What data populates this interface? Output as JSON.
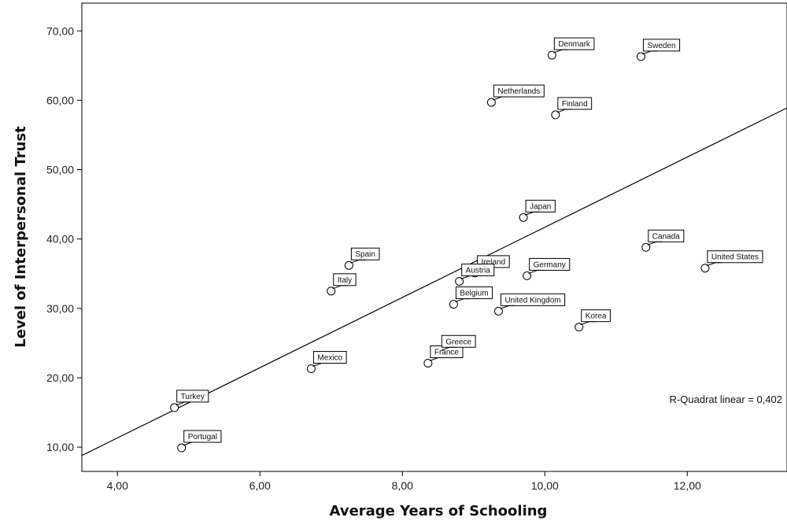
{
  "chart_data": {
    "type": "scatter",
    "title": "",
    "xlabel": "Average Years of Schooling",
    "ylabel": "Level of Interpersonal Trust",
    "xlim": [
      3.5,
      13.4
    ],
    "ylim": [
      6.5,
      74.0
    ],
    "xticks": [
      4,
      6,
      8,
      10,
      12
    ],
    "xtick_labels": [
      "4,00",
      "6,00",
      "8,00",
      "10,00",
      "12,00"
    ],
    "yticks": [
      10,
      20,
      30,
      40,
      50,
      60,
      70
    ],
    "ytick_labels": [
      "10,00",
      "20,00",
      "30,00",
      "40,00",
      "50,00",
      "60,00",
      "70,00"
    ],
    "grid": false,
    "points": [
      {
        "label": "Denmark",
        "x": 10.1,
        "y": 66.5
      },
      {
        "label": "Sweden",
        "x": 11.35,
        "y": 66.3
      },
      {
        "label": "Netherlands",
        "x": 9.25,
        "y": 59.7
      },
      {
        "label": "Finland",
        "x": 10.15,
        "y": 57.9
      },
      {
        "label": "Japan",
        "x": 9.7,
        "y": 43.1
      },
      {
        "label": "Canada",
        "x": 11.42,
        "y": 38.8
      },
      {
        "label": "United States",
        "x": 12.25,
        "y": 35.8
      },
      {
        "label": "Spain",
        "x": 7.25,
        "y": 36.2
      },
      {
        "label": "Ireland",
        "x": 9.02,
        "y": 35.1
      },
      {
        "label": "Germany",
        "x": 9.75,
        "y": 34.7
      },
      {
        "label": "Austria",
        "x": 8.8,
        "y": 33.9
      },
      {
        "label": "Italy",
        "x": 7.0,
        "y": 32.5
      },
      {
        "label": "Belgium",
        "x": 8.72,
        "y": 30.6
      },
      {
        "label": "United Kingdom",
        "x": 9.35,
        "y": 29.6
      },
      {
        "label": "Korea",
        "x": 10.48,
        "y": 27.3
      },
      {
        "label": "France",
        "x": 8.36,
        "y": 22.1
      },
      {
        "label": "Greece",
        "x": 8.52,
        "y": 23.6
      },
      {
        "label": "Mexico",
        "x": 6.72,
        "y": 21.3
      },
      {
        "label": "Turkey",
        "x": 4.8,
        "y": 15.7
      },
      {
        "label": "Portugal",
        "x": 4.9,
        "y": 9.9
      }
    ],
    "fit_line": {
      "type": "linear",
      "start": {
        "x": 3.5,
        "y": 8.8
      },
      "end": {
        "x": 13.4,
        "y": 58.9
      }
    },
    "annotation": "R-Quadrat linear = 0,402"
  }
}
